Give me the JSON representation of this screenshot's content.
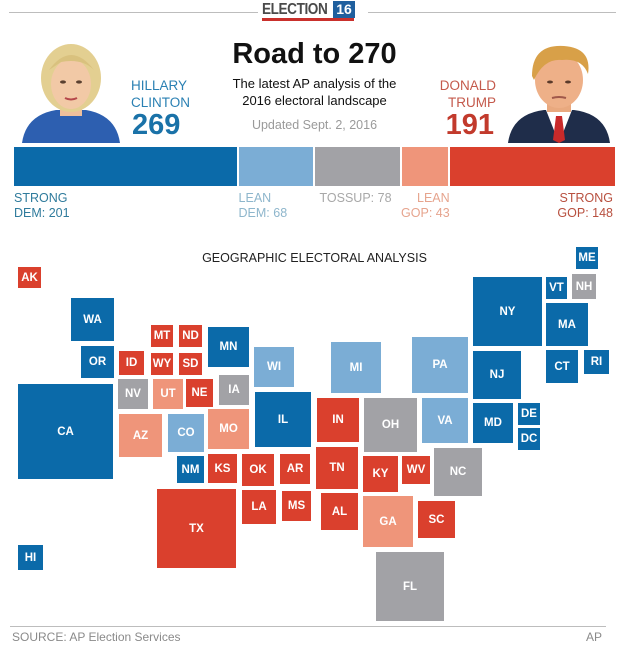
{
  "header": {
    "logo_text": "ELECTION",
    "logo_year": "16"
  },
  "title": "Road to 270",
  "subtitle_lines": [
    "The latest AP analysis of the",
    "2016 electoral landscape"
  ],
  "updated": "Updated Sept. 2, 2016",
  "candidates": {
    "dem": {
      "first": "HILLARY",
      "last": "CLINTON",
      "votes": "269",
      "color": "#1a72a8"
    },
    "gop": {
      "first": "DONALD",
      "last": "TRUMP",
      "votes": "191",
      "color": "#c23a2c"
    }
  },
  "chart_data": {
    "type": "bar",
    "stacked": true,
    "total": 538,
    "categories": [
      "STRONG DEM",
      "LEAN DEM",
      "TOSSUP",
      "LEAN GOP",
      "STRONG GOP"
    ],
    "values": [
      201,
      68,
      78,
      43,
      148
    ],
    "colors": [
      "#0b6aa9",
      "#7badd5",
      "#a2a2a6",
      "#ef957a",
      "#da402d"
    ],
    "labels": [
      {
        "line1": "STRONG",
        "line2": "DEM: 201",
        "color": "#2f7b9c"
      },
      {
        "line1": "LEAN",
        "line2": "DEM: 68",
        "color": "#8eb6cc"
      },
      {
        "line1": "TOSSUP: 78",
        "line2": "",
        "color": "#a8a8a8"
      },
      {
        "line1": "LEAN",
        "line2": "GOP: 43",
        "color": "#e6a48e"
      },
      {
        "line1": "STRONG",
        "line2": "GOP: 148",
        "color": "#b8503f"
      }
    ]
  },
  "map": {
    "heading": "GEOGRAPHIC ELECTORAL ANALYSIS",
    "rating_colors": {
      "strong_dem": "#0b6aa9",
      "lean_dem": "#7badd5",
      "tossup": "#a2a2a6",
      "lean_gop": "#ef957a",
      "strong_gop": "#da402d"
    },
    "states": [
      {
        "code": "AK",
        "rating": "strong_gop"
      },
      {
        "code": "WA",
        "rating": "strong_dem"
      },
      {
        "code": "OR",
        "rating": "strong_dem"
      },
      {
        "code": "CA",
        "rating": "strong_dem"
      },
      {
        "code": "HI",
        "rating": "strong_dem"
      },
      {
        "code": "ID",
        "rating": "strong_gop"
      },
      {
        "code": "MT",
        "rating": "strong_gop"
      },
      {
        "code": "ND",
        "rating": "strong_gop"
      },
      {
        "code": "WY",
        "rating": "strong_gop"
      },
      {
        "code": "SD",
        "rating": "strong_gop"
      },
      {
        "code": "MN",
        "rating": "strong_dem"
      },
      {
        "code": "WI",
        "rating": "lean_dem"
      },
      {
        "code": "NV",
        "rating": "tossup"
      },
      {
        "code": "UT",
        "rating": "lean_gop"
      },
      {
        "code": "NE",
        "rating": "strong_gop"
      },
      {
        "code": "IA",
        "rating": "tossup"
      },
      {
        "code": "IL",
        "rating": "strong_dem"
      },
      {
        "code": "AZ",
        "rating": "lean_gop"
      },
      {
        "code": "CO",
        "rating": "lean_dem"
      },
      {
        "code": "MO",
        "rating": "lean_gop"
      },
      {
        "code": "NM",
        "rating": "strong_dem"
      },
      {
        "code": "KS",
        "rating": "strong_gop"
      },
      {
        "code": "OK",
        "rating": "strong_gop"
      },
      {
        "code": "AR",
        "rating": "strong_gop"
      },
      {
        "code": "TX",
        "rating": "strong_gop"
      },
      {
        "code": "LA",
        "rating": "strong_gop"
      },
      {
        "code": "MS",
        "rating": "strong_gop"
      },
      {
        "code": "MI",
        "rating": "lean_dem"
      },
      {
        "code": "IN",
        "rating": "strong_gop"
      },
      {
        "code": "OH",
        "rating": "tossup"
      },
      {
        "code": "TN",
        "rating": "strong_gop"
      },
      {
        "code": "KY",
        "rating": "strong_gop"
      },
      {
        "code": "WV",
        "rating": "strong_gop"
      },
      {
        "code": "AL",
        "rating": "strong_gop"
      },
      {
        "code": "GA",
        "rating": "lean_gop"
      },
      {
        "code": "SC",
        "rating": "strong_gop"
      },
      {
        "code": "NC",
        "rating": "tossup"
      },
      {
        "code": "FL",
        "rating": "tossup"
      },
      {
        "code": "PA",
        "rating": "lean_dem"
      },
      {
        "code": "VA",
        "rating": "lean_dem"
      },
      {
        "code": "NY",
        "rating": "strong_dem"
      },
      {
        "code": "NJ",
        "rating": "strong_dem"
      },
      {
        "code": "MD",
        "rating": "strong_dem"
      },
      {
        "code": "DE",
        "rating": "strong_dem"
      },
      {
        "code": "DC",
        "rating": "strong_dem"
      },
      {
        "code": "VT",
        "rating": "strong_dem"
      },
      {
        "code": "NH",
        "rating": "tossup"
      },
      {
        "code": "ME",
        "rating": "strong_dem"
      },
      {
        "code": "MA",
        "rating": "strong_dem"
      },
      {
        "code": "CT",
        "rating": "strong_dem"
      },
      {
        "code": "RI",
        "rating": "strong_dem"
      }
    ]
  },
  "footer": {
    "source": "SOURCE: AP Election Services",
    "credit": "AP"
  }
}
